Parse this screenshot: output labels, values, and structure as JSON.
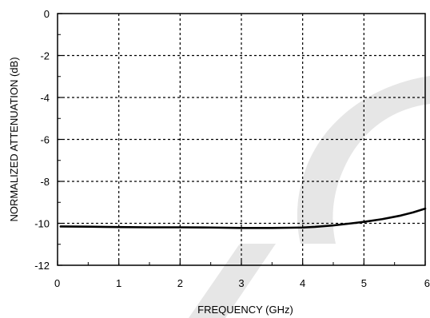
{
  "chart_data": {
    "type": "line",
    "title": "",
    "xlabel": "FREQUENCY (GHz)",
    "ylabel": "NORMALIZED ATTENUATION (dB)",
    "xlim": [
      0,
      6
    ],
    "ylim": [
      -12,
      0
    ],
    "xticks": [
      "0",
      "1",
      "2",
      "3",
      "4",
      "5",
      "6"
    ],
    "yticks": [
      "0",
      "-2",
      "-4",
      "-6",
      "-8",
      "-10",
      "-12"
    ],
    "grid": true,
    "legend": "none",
    "series": [
      {
        "x": [
          0.05,
          0.5,
          1.0,
          1.5,
          2.0,
          2.5,
          3.0,
          3.5,
          3.8,
          4.0,
          4.2,
          4.5,
          4.8,
          5.0,
          5.3,
          5.6,
          5.8,
          6.0
        ],
        "y": [
          -10.15,
          -10.16,
          -10.18,
          -10.19,
          -10.19,
          -10.2,
          -10.22,
          -10.22,
          -10.21,
          -10.2,
          -10.17,
          -10.1,
          -10.0,
          -9.93,
          -9.8,
          -9.63,
          -9.48,
          -9.3
        ]
      }
    ],
    "colors": {
      "line": "#000000",
      "grid": "#000000",
      "watermark": "#e6e6e6"
    }
  }
}
